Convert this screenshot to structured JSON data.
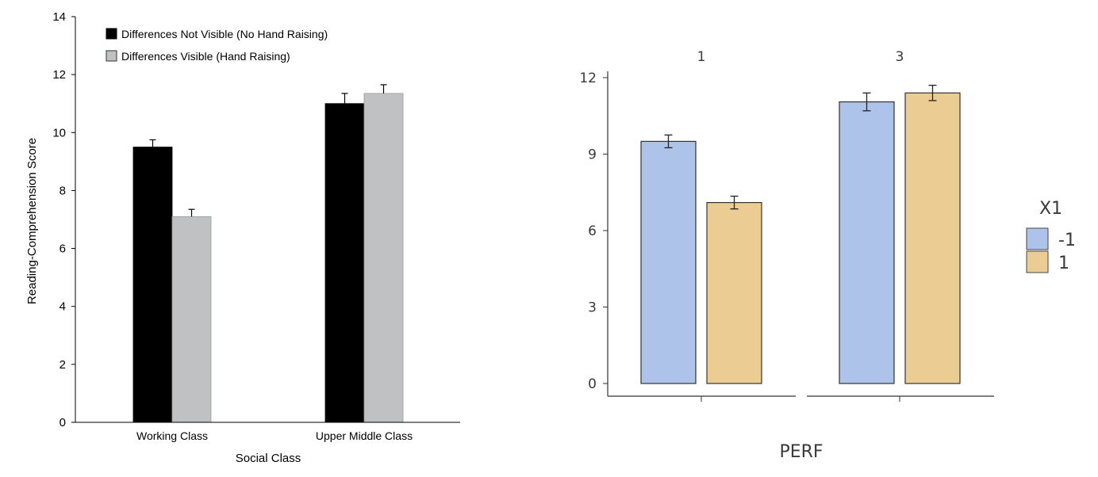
{
  "chart_data": [
    {
      "type": "bar",
      "title": "",
      "xlabel": "Social Class",
      "ylabel": "Reading-Comprehension Score",
      "ylim": [
        0,
        14
      ],
      "yticks": [
        "0",
        "2",
        "4",
        "6",
        "8",
        "10",
        "12",
        "14"
      ],
      "categories": [
        "Working Class",
        "Upper Middle Class"
      ],
      "series": [
        {
          "name": "Differences Not Visible (No Hand Raising)",
          "color": "#000000",
          "values": [
            9.5,
            11.0
          ],
          "errors": [
            0.25,
            0.35
          ]
        },
        {
          "name": "Differences Visible (Hand Raising)",
          "color": "#c0c1c3",
          "values": [
            7.1,
            11.35
          ],
          "errors": [
            0.25,
            0.3
          ]
        }
      ],
      "legend_position": "top-left"
    },
    {
      "type": "bar",
      "title": "",
      "xlabel": "PERF",
      "ylabel": "",
      "ylim": [
        0,
        12
      ],
      "yticks": [
        "0",
        "3",
        "6",
        "9",
        "12"
      ],
      "facets": [
        "1",
        "3"
      ],
      "legend_title": "X1",
      "series": [
        {
          "name": "-1",
          "color": "#aec3ea",
          "values": [
            9.5,
            11.05
          ],
          "errors": [
            0.25,
            0.35
          ]
        },
        {
          "name": "1",
          "color": "#ebcd93",
          "values": [
            7.1,
            11.4
          ],
          "errors": [
            0.25,
            0.3
          ]
        }
      ],
      "legend_position": "right"
    }
  ]
}
